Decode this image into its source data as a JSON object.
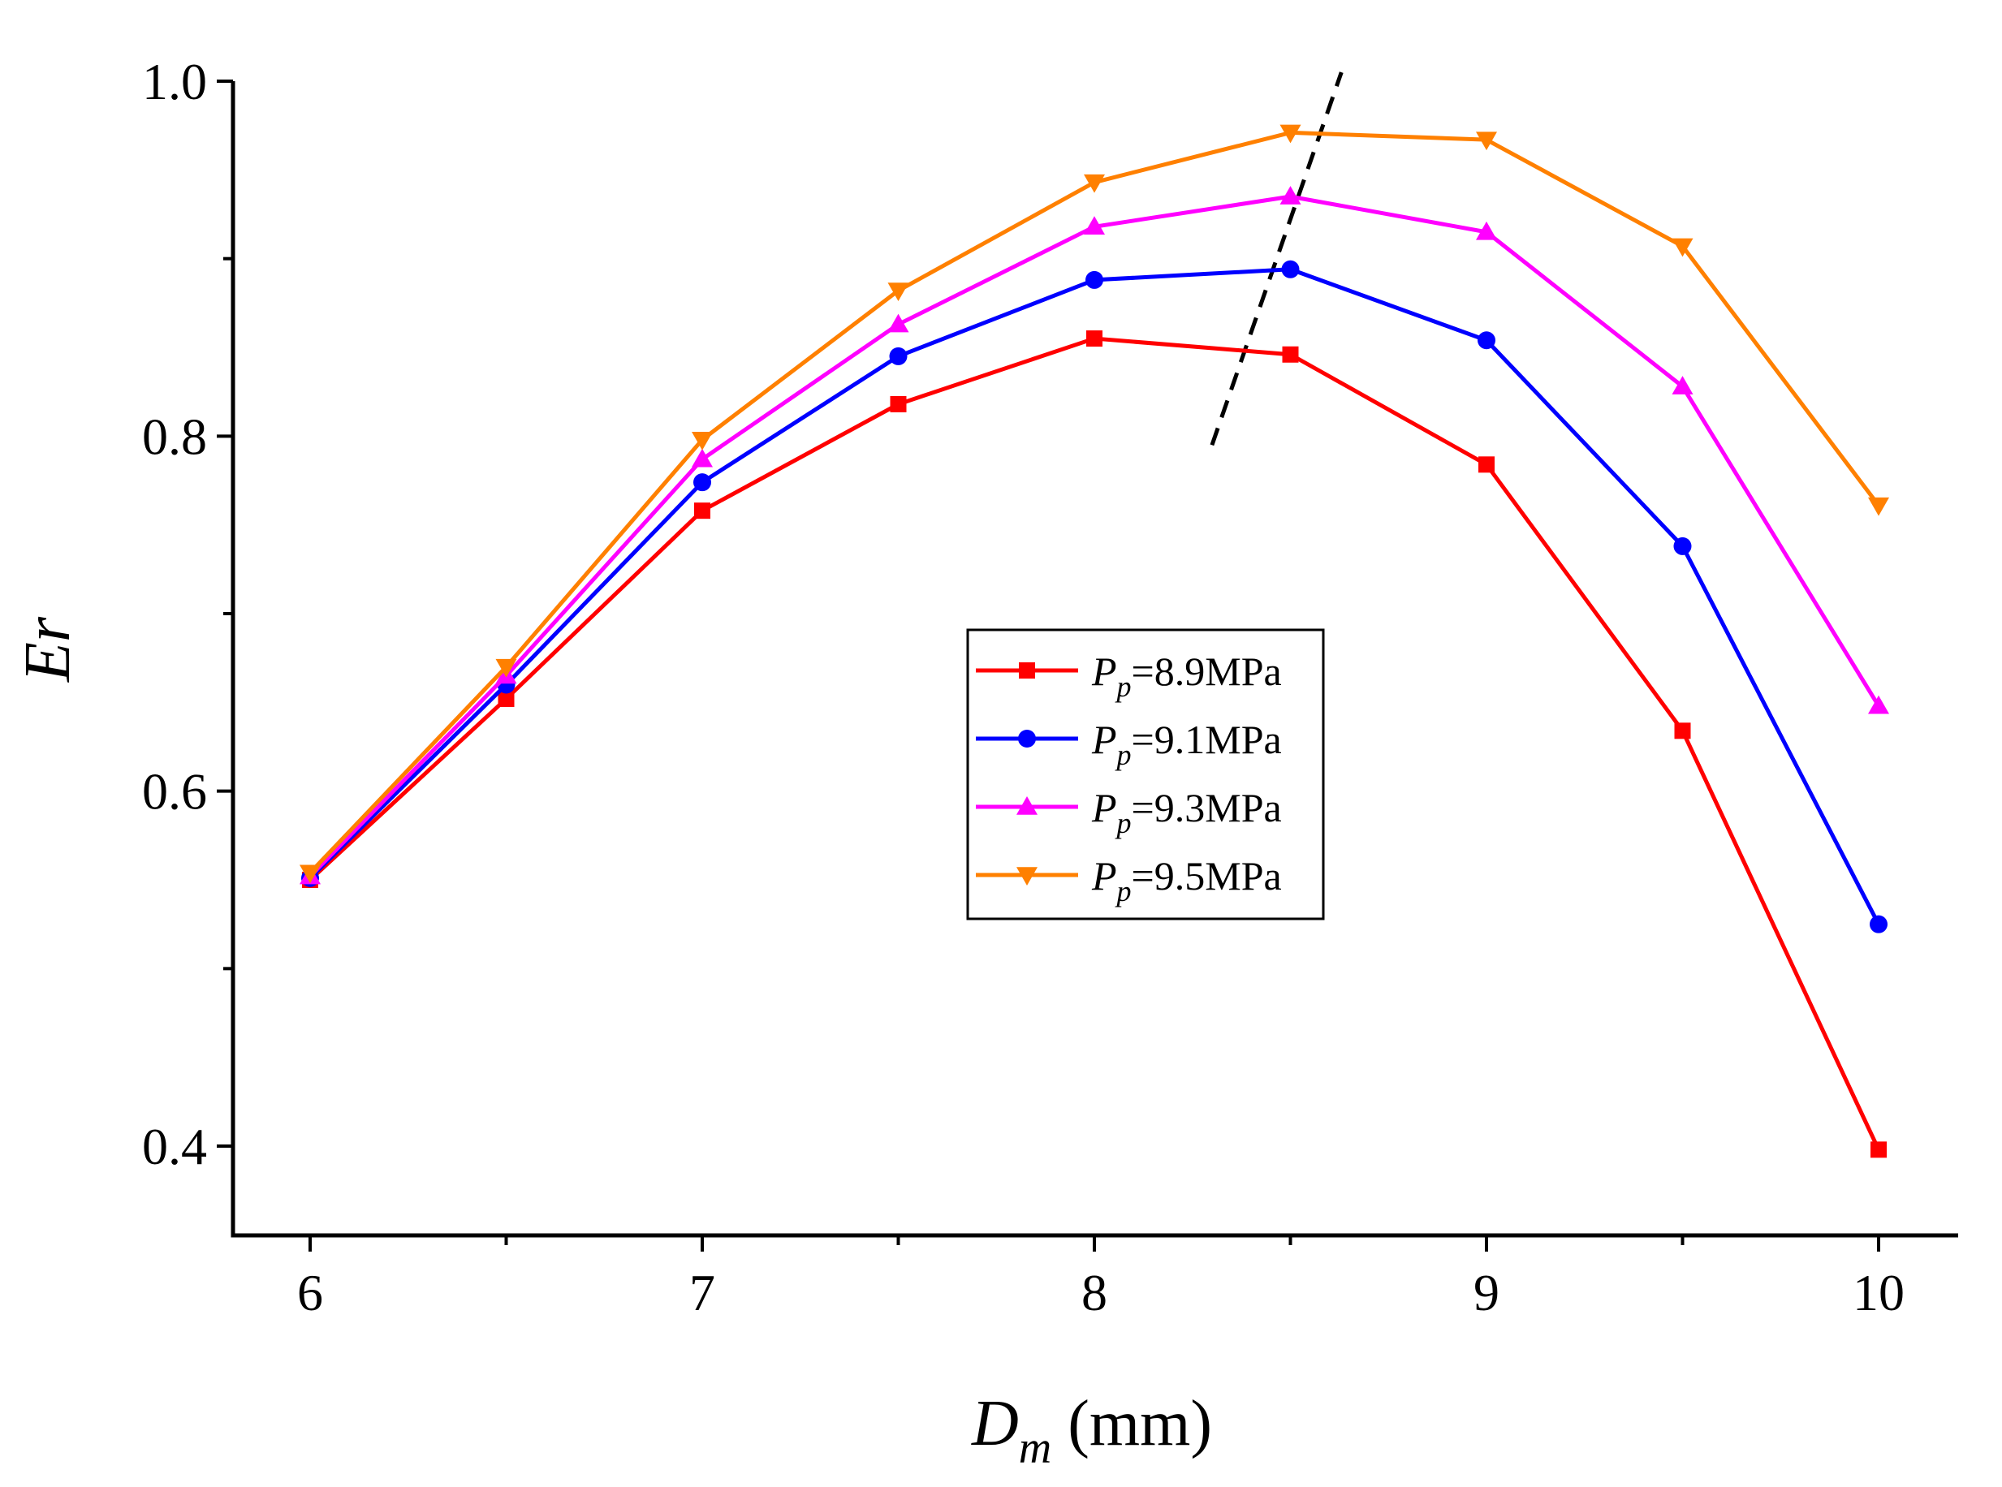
{
  "chart_data": {
    "type": "line",
    "title": "",
    "xlabel": {
      "main": "D",
      "sub": "m",
      "unit": " (mm)"
    },
    "ylabel": "Er",
    "x": [
      6,
      6.5,
      7,
      7.5,
      8,
      8.5,
      9,
      9.5,
      10
    ],
    "xlim": [
      5.8,
      10.2
    ],
    "ylim": [
      0.35,
      1.0
    ],
    "xticks": [
      6,
      7,
      8,
      9,
      10
    ],
    "xtick_labels": [
      "6",
      "7",
      "8",
      "9",
      "10"
    ],
    "xminor": [
      6.5,
      7.5,
      8.5,
      9.5
    ],
    "yticks": [
      0.4,
      0.6,
      0.8,
      1.0
    ],
    "ytick_labels": [
      "0.4",
      "0.6",
      "0.8",
      "1.0"
    ],
    "yminor": [
      0.5,
      0.7,
      0.9
    ],
    "grid": false,
    "legend_position": "center-right",
    "series": [
      {
        "name": "8.9MPa",
        "legend_main": "P",
        "legend_sub": "p",
        "legend_value": "=8.9MPa",
        "color": "#ff0000",
        "marker": "square",
        "values": [
          0.55,
          0.652,
          0.758,
          0.818,
          0.855,
          0.846,
          0.784,
          0.634,
          0.398
        ]
      },
      {
        "name": "9.1MPa",
        "legend_main": "P",
        "legend_sub": "p",
        "legend_value": "=9.1MPa",
        "color": "#0000ff",
        "marker": "circle",
        "values": [
          0.551,
          0.66,
          0.774,
          0.845,
          0.888,
          0.894,
          0.854,
          0.738,
          0.525
        ]
      },
      {
        "name": "9.3MPa",
        "legend_main": "P",
        "legend_sub": "p",
        "legend_value": "=9.3MPa",
        "color": "#ff00ff",
        "marker": "triangle-up",
        "values": [
          0.552,
          0.665,
          0.787,
          0.863,
          0.918,
          0.935,
          0.915,
          0.828,
          0.648
        ]
      },
      {
        "name": "9.5MPa",
        "legend_main": "P",
        "legend_sub": "p",
        "legend_value": "=9.5MPa",
        "color": "#ff8000",
        "marker": "triangle-down",
        "values": [
          0.554,
          0.67,
          0.798,
          0.882,
          0.943,
          0.971,
          0.967,
          0.907,
          0.761
        ]
      }
    ],
    "annotations": [
      {
        "type": "dashed-line",
        "color": "#000000",
        "from": [
          8.3,
          0.795
        ],
        "to": [
          8.63,
          1.005
        ]
      }
    ]
  }
}
